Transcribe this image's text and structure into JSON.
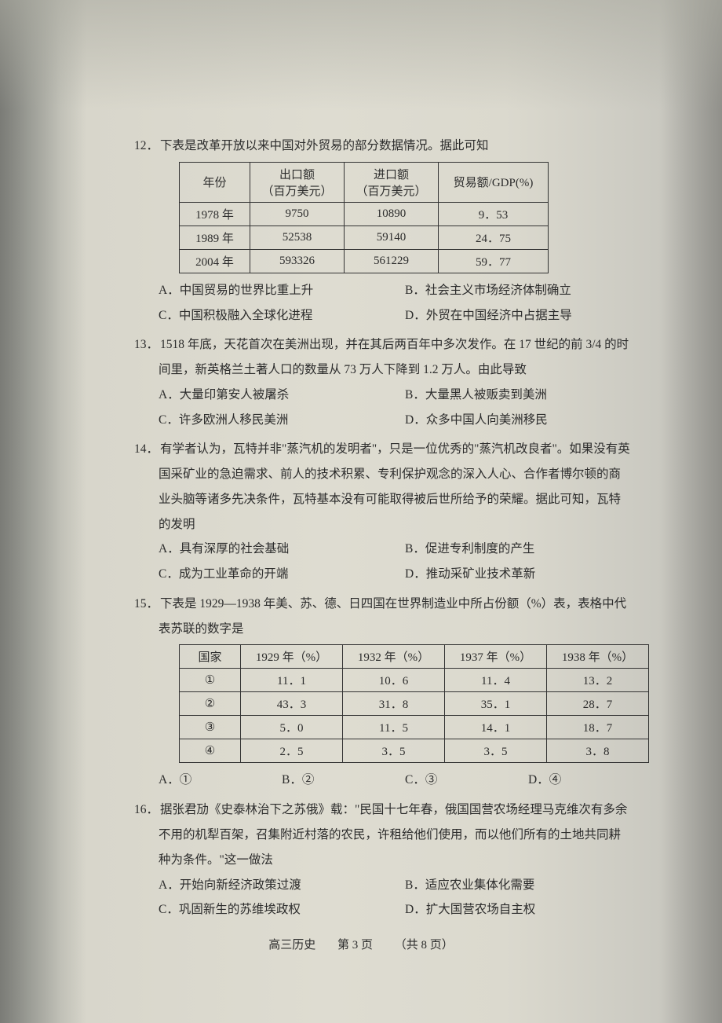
{
  "q12": {
    "num": "12．",
    "stem": "下表是改革开放以来中国对外贸易的部分数据情况。据此可知",
    "table": {
      "headers": [
        "年份",
        "出口额\n（百万美元）",
        "进口额\n（百万美元）",
        "贸易额/GDP(%)"
      ],
      "rows": [
        [
          "1978 年",
          "9750",
          "10890",
          "9．53"
        ],
        [
          "1989 年",
          "52538",
          "59140",
          "24．75"
        ],
        [
          "2004 年",
          "593326",
          "561229",
          "59．77"
        ]
      ]
    },
    "opts": {
      "A": "A．中国贸易的世界比重上升",
      "B": "B．社会主义市场经济体制确立",
      "C": "C．中国积极融入全球化进程",
      "D": "D．外贸在中国经济中占据主导"
    }
  },
  "q13": {
    "num": "13．",
    "stem1": "1518 年底，天花首次在美洲出现，并在其后两百年中多次发作。在 17 世纪的前 3/4 的时",
    "stem2": "间里，新英格兰土著人口的数量从 73 万人下降到 1.2 万人。由此导致",
    "opts": {
      "A": "A．大量印第安人被屠杀",
      "B": "B．大量黑人被贩卖到美洲",
      "C": "C．许多欧洲人移民美洲",
      "D": "D．众多中国人向美洲移民"
    }
  },
  "q14": {
    "num": "14．",
    "stem1": "有学者认为，瓦特并非\"蒸汽机的发明者\"，只是一位优秀的\"蒸汽机改良者\"。如果没有英",
    "stem2": "国采矿业的急迫需求、前人的技术积累、专利保护观念的深入人心、合作者博尔顿的商",
    "stem3": "业头脑等诸多先决条件，瓦特基本没有可能取得被后世所给予的荣耀。据此可知，瓦特",
    "stem4": "的发明",
    "opts": {
      "A": "A．具有深厚的社会基础",
      "B": "B．促进专利制度的产生",
      "C": "C．成为工业革命的开端",
      "D": "D．推动采矿业技术革新"
    }
  },
  "q15": {
    "num": "15．",
    "stem1": "下表是 1929—1938 年美、苏、德、日四国在世界制造业中所占份额（%）表，表格中代",
    "stem2": "表苏联的数字是",
    "table": {
      "headers": [
        "国家",
        "1929 年（%）",
        "1932 年（%）",
        "1937 年（%）",
        "1938 年（%）"
      ],
      "rows": [
        [
          "①",
          "11．1",
          "10．6",
          "11．4",
          "13．2"
        ],
        [
          "②",
          "43．3",
          "31．8",
          "35．1",
          "28．7"
        ],
        [
          "③",
          "5．0",
          "11．5",
          "14．1",
          "18．7"
        ],
        [
          "④",
          "2．5",
          "3．5",
          "3．5",
          "3．8"
        ]
      ]
    },
    "opts": {
      "A": "A．①",
      "B": "B．②",
      "C": "C．③",
      "D": "D．④"
    }
  },
  "q16": {
    "num": "16．",
    "stem1": "据张君劢《史泰林治下之苏俄》载：\"民国十七年春，俄国国营农场经理马克维次有多余",
    "stem2": "不用的机犁百架，召集附近村落的农民，许租给他们使用，而以他们所有的土地共同耕",
    "stem3": "种为条件。\"这一做法",
    "opts": {
      "A": "A．开始向新经济政策过渡",
      "B": "B．适应农业集体化需要",
      "C": "C．巩固新生的苏维埃政权",
      "D": "D．扩大国营农场自主权"
    }
  },
  "footer": {
    "subject": "高三历史",
    "page": "第 3 页",
    "total": "（共 8 页）"
  },
  "colors": {
    "text": "#2c2c2c",
    "border": "#333333",
    "bg_left": "#aeb0ab",
    "bg_mid": "#dedcd1",
    "bg_right": "#b5b4ae"
  },
  "fonts": {
    "family": "SimSun",
    "body_pt": 15.5
  }
}
